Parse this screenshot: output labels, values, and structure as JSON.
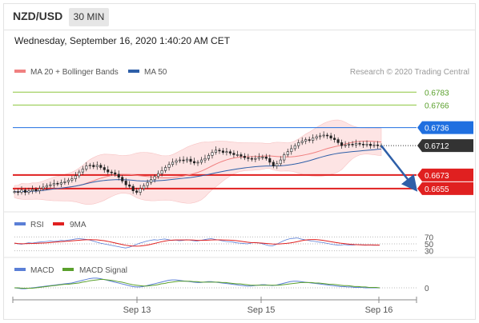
{
  "header": {
    "pair": "NZD/USD",
    "timeframe": "30 MIN",
    "datetime": "Wednesday, September 16, 2020 1:40:20 AM CET"
  },
  "colors": {
    "ma20": "#f08080",
    "bollinger_fill": "#fde0e0",
    "ma50": "#2e5fa8",
    "resistance": "#8dc63f",
    "support": "#e02020",
    "pivot_blue": "#1f6fe0",
    "current_price": "#333333",
    "rsi": "#5b7fd6",
    "rsi_ma": "#e02020",
    "macd": "#5b7fd6",
    "macd_signal": "#5aa02c",
    "forecast_arrow": "#2e5fa8"
  },
  "chart_data": {
    "type": "candlestick",
    "legend": {
      "ma20": "MA 20 + Bollinger Bands",
      "ma50": "MA 50"
    },
    "credit": "Research © 2020 Trading Central",
    "price_levels": [
      {
        "value": 0.6783,
        "label": "0.6783",
        "kind": "resistance"
      },
      {
        "value": 0.6766,
        "label": "0.6766",
        "kind": "resistance"
      },
      {
        "value": 0.6736,
        "label": "0.6736",
        "kind": "pivot"
      },
      {
        "value": 0.6712,
        "label": "0.6712",
        "kind": "current"
      },
      {
        "value": 0.6673,
        "label": "0.6673",
        "kind": "support"
      },
      {
        "value": 0.6655,
        "label": "0.6655",
        "kind": "support"
      }
    ],
    "ylim": [
      0.664,
      0.6795
    ],
    "x_ticks": [
      "Sep 13",
      "Sep 15",
      "Sep 16"
    ],
    "close_series": [
      0.6651,
      0.665,
      0.6653,
      0.665,
      0.6652,
      0.6654,
      0.6652,
      0.6655,
      0.6657,
      0.6659,
      0.666,
      0.6662,
      0.6661,
      0.6663,
      0.6664,
      0.6666,
      0.6668,
      0.6672,
      0.6677,
      0.6681,
      0.6685,
      0.6686,
      0.6684,
      0.6686,
      0.6683,
      0.668,
      0.6677,
      0.6676,
      0.6674,
      0.667,
      0.6665,
      0.666,
      0.6658,
      0.6652,
      0.665,
      0.6655,
      0.6659,
      0.6663,
      0.6667,
      0.6671,
      0.6675,
      0.6679,
      0.6683,
      0.6687,
      0.669,
      0.6692,
      0.6693,
      0.6692,
      0.6694,
      0.6691,
      0.6689,
      0.669,
      0.6693,
      0.6695,
      0.6699,
      0.6703,
      0.6706,
      0.6705,
      0.6703,
      0.6704,
      0.6702,
      0.67,
      0.67,
      0.6698,
      0.6696,
      0.6695,
      0.6694,
      0.6695,
      0.6697,
      0.6697,
      0.6695,
      0.669,
      0.6685,
      0.6688,
      0.6693,
      0.67,
      0.6704,
      0.6708,
      0.6712,
      0.6716,
      0.6718,
      0.672,
      0.6719,
      0.6722,
      0.6724,
      0.6725,
      0.6726,
      0.6725,
      0.6722,
      0.672,
      0.6716,
      0.6712,
      0.6713,
      0.6714,
      0.6713,
      0.6715,
      0.6714,
      0.6713,
      0.6714,
      0.6712,
      0.6713,
      0.6712,
      0.6712
    ],
    "projection_target": 0.6655,
    "rsi": {
      "label": "RSI",
      "ma_label": "9MA",
      "levels": [
        70,
        50,
        30
      ],
      "values": [
        52,
        50,
        49,
        51,
        53,
        52,
        54,
        55,
        56,
        57,
        58,
        57,
        58,
        60,
        59,
        61,
        62,
        64,
        65,
        64,
        63,
        61,
        58,
        55,
        52,
        50,
        48,
        46,
        44,
        42,
        40,
        38,
        40,
        44,
        48,
        52,
        55,
        58,
        60,
        62,
        61,
        63,
        64,
        62,
        60,
        61,
        59,
        60,
        62,
        61,
        59,
        58,
        60,
        62,
        64,
        65,
        63,
        61,
        59,
        57,
        56,
        55,
        53,
        52,
        51,
        50,
        52,
        54,
        53,
        51,
        48,
        45,
        44,
        48,
        53,
        58,
        62,
        65,
        66,
        67,
        64,
        62,
        60,
        58,
        57,
        55,
        54,
        52,
        50,
        48,
        47,
        46,
        48,
        47,
        46,
        47,
        48,
        47,
        46,
        47,
        46,
        46,
        46
      ]
    },
    "macd": {
      "label": "MACD",
      "signal_label": "MACD Signal",
      "zero_label": "0",
      "macd": [
        0,
        -1,
        -2,
        -2,
        -1,
        0,
        1,
        2,
        3,
        4,
        5,
        6,
        7,
        8,
        9,
        10,
        11,
        13,
        15,
        17,
        19,
        21,
        22,
        22,
        21,
        19,
        17,
        15,
        13,
        11,
        9,
        7,
        5,
        3,
        2,
        2,
        3,
        5,
        7,
        9,
        11,
        13,
        15,
        17,
        18,
        18,
        17,
        16,
        15,
        14,
        13,
        12,
        12,
        13,
        14,
        14,
        13,
        12,
        11,
        10,
        9,
        8,
        7,
        6,
        5,
        4,
        4,
        5,
        6,
        7,
        7,
        6,
        5,
        6,
        8,
        10,
        12,
        14,
        15,
        15,
        14,
        13,
        12,
        11,
        10,
        9,
        8,
        7,
        6,
        5,
        4,
        3,
        3,
        2,
        2,
        1,
        1,
        1,
        0,
        0,
        0,
        0,
        0
      ],
      "signal": [
        0,
        0,
        -1,
        -1,
        -1,
        -1,
        0,
        1,
        2,
        3,
        4,
        5,
        6,
        7,
        8,
        8,
        9,
        10,
        11,
        13,
        14,
        16,
        17,
        18,
        19,
        19,
        18,
        17,
        16,
        14,
        13,
        11,
        9,
        7,
        6,
        5,
        4,
        4,
        5,
        6,
        7,
        9,
        10,
        12,
        13,
        14,
        15,
        15,
        15,
        15,
        14,
        14,
        13,
        13,
        13,
        13,
        13,
        13,
        12,
        12,
        11,
        10,
        9,
        9,
        8,
        7,
        6,
        6,
        6,
        6,
        6,
        6,
        6,
        6,
        6,
        7,
        8,
        9,
        10,
        11,
        12,
        12,
        12,
        12,
        11,
        11,
        10,
        9,
        8,
        8,
        7,
        6,
        5,
        5,
        4,
        3,
        3,
        2,
        2,
        1,
        1,
        1,
        0
      ]
    }
  }
}
